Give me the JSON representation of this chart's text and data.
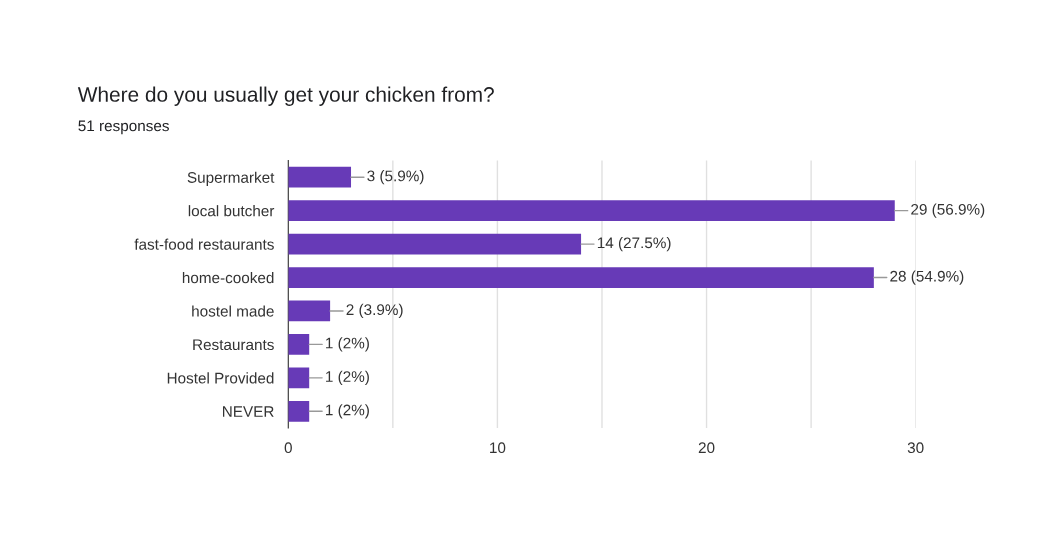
{
  "chart_data": {
    "type": "bar",
    "orientation": "horizontal",
    "title": "Where do you usually get your chicken from?",
    "subtitle": "51 responses",
    "categories": [
      "Supermarket",
      "local butcher",
      "fast-food restaurants",
      "home-cooked",
      "hostel made",
      "Restaurants",
      "Hostel Provided",
      "NEVER"
    ],
    "values": [
      3,
      29,
      14,
      28,
      2,
      1,
      1,
      1
    ],
    "value_labels": [
      "3 (5.9%)",
      "29 (56.9%)",
      "14 (27.5%)",
      "28 (54.9%)",
      "2 (3.9%)",
      "1 (2%)",
      "1 (2%)",
      "1 (2%)"
    ],
    "color": "#673ab7",
    "xlim": [
      0,
      30
    ],
    "xticks": [
      0,
      {
        "value": 5,
        "label": null
      },
      10,
      {
        "value": 15,
        "label": null
      },
      20,
      {
        "value": 25,
        "label": null
      },
      30
    ],
    "grid": "x"
  }
}
